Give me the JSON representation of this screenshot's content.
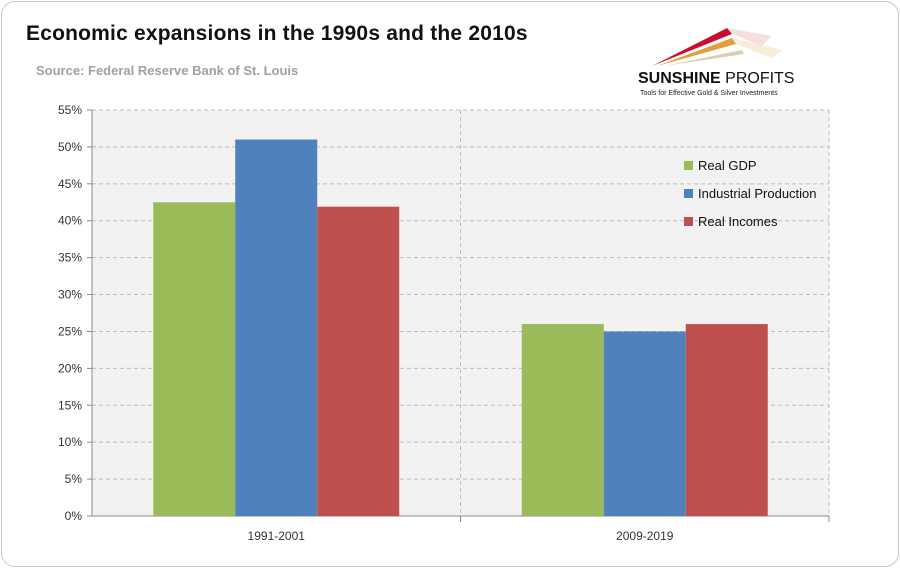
{
  "header": {
    "title": "Economic expansions in the 1990s and the 2010s",
    "source": "Source: Federal Reserve Bank of St. Louis"
  },
  "logo": {
    "name_bold": "SUNSHINE",
    "name_regular": "PROFITS",
    "tagline": "Tools for Effective Gold & Silver Investments"
  },
  "chart_data": {
    "type": "bar",
    "title": "Economic expansions in the 1990s and the 2010s",
    "categories": [
      "1991-2001",
      "2009-2019"
    ],
    "series": [
      {
        "name": "Real GDP",
        "values": [
          42.5,
          26
        ],
        "color": "#9bbb59"
      },
      {
        "name": "Industrial Production",
        "values": [
          51,
          25
        ],
        "color": "#4f81bd"
      },
      {
        "name": "Real Incomes",
        "values": [
          41.9,
          26
        ],
        "color": "#c0504d"
      }
    ],
    "ylim": [
      0,
      55
    ],
    "yticks": [
      "0%",
      "5%",
      "10%",
      "15%",
      "20%",
      "25%",
      "30%",
      "35%",
      "40%",
      "45%",
      "50%",
      "55%"
    ],
    "grid": true,
    "legend": "top-right",
    "plot_background": "#f2f2f2"
  }
}
